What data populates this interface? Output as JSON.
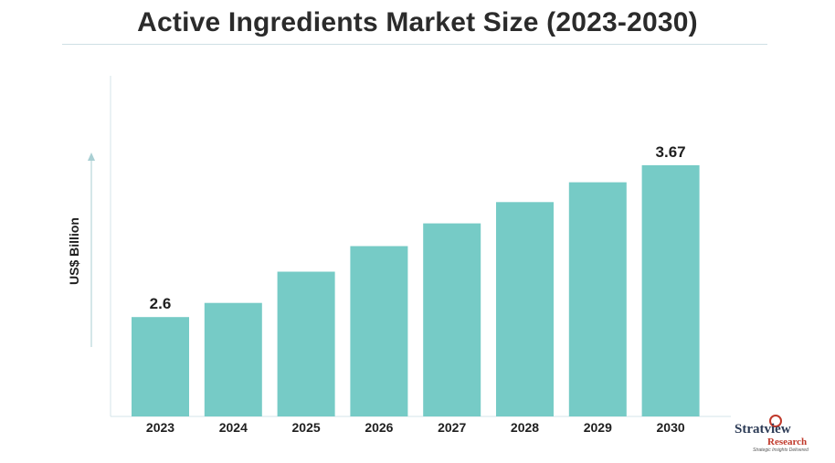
{
  "chart_data": {
    "type": "bar",
    "title": "Active Ingredients Market Size (2023-2030)",
    "ylabel": "US$ Billion",
    "categories": [
      "2023",
      "2024",
      "2025",
      "2026",
      "2027",
      "2028",
      "2029",
      "2030"
    ],
    "values": [
      2.6,
      2.7,
      2.92,
      3.1,
      3.26,
      3.41,
      3.55,
      3.67
    ],
    "data_labels": {
      "0": "2.6",
      "7": "3.67"
    },
    "ylim": [
      1.9,
      4.3
    ],
    "bar_color": "#76cbc6",
    "grid": false,
    "legend": "none"
  },
  "logo": {
    "name": "Stratview",
    "sub": "Research",
    "tagline": "Strategic Insights Delivered",
    "accent": "#c0392b"
  }
}
